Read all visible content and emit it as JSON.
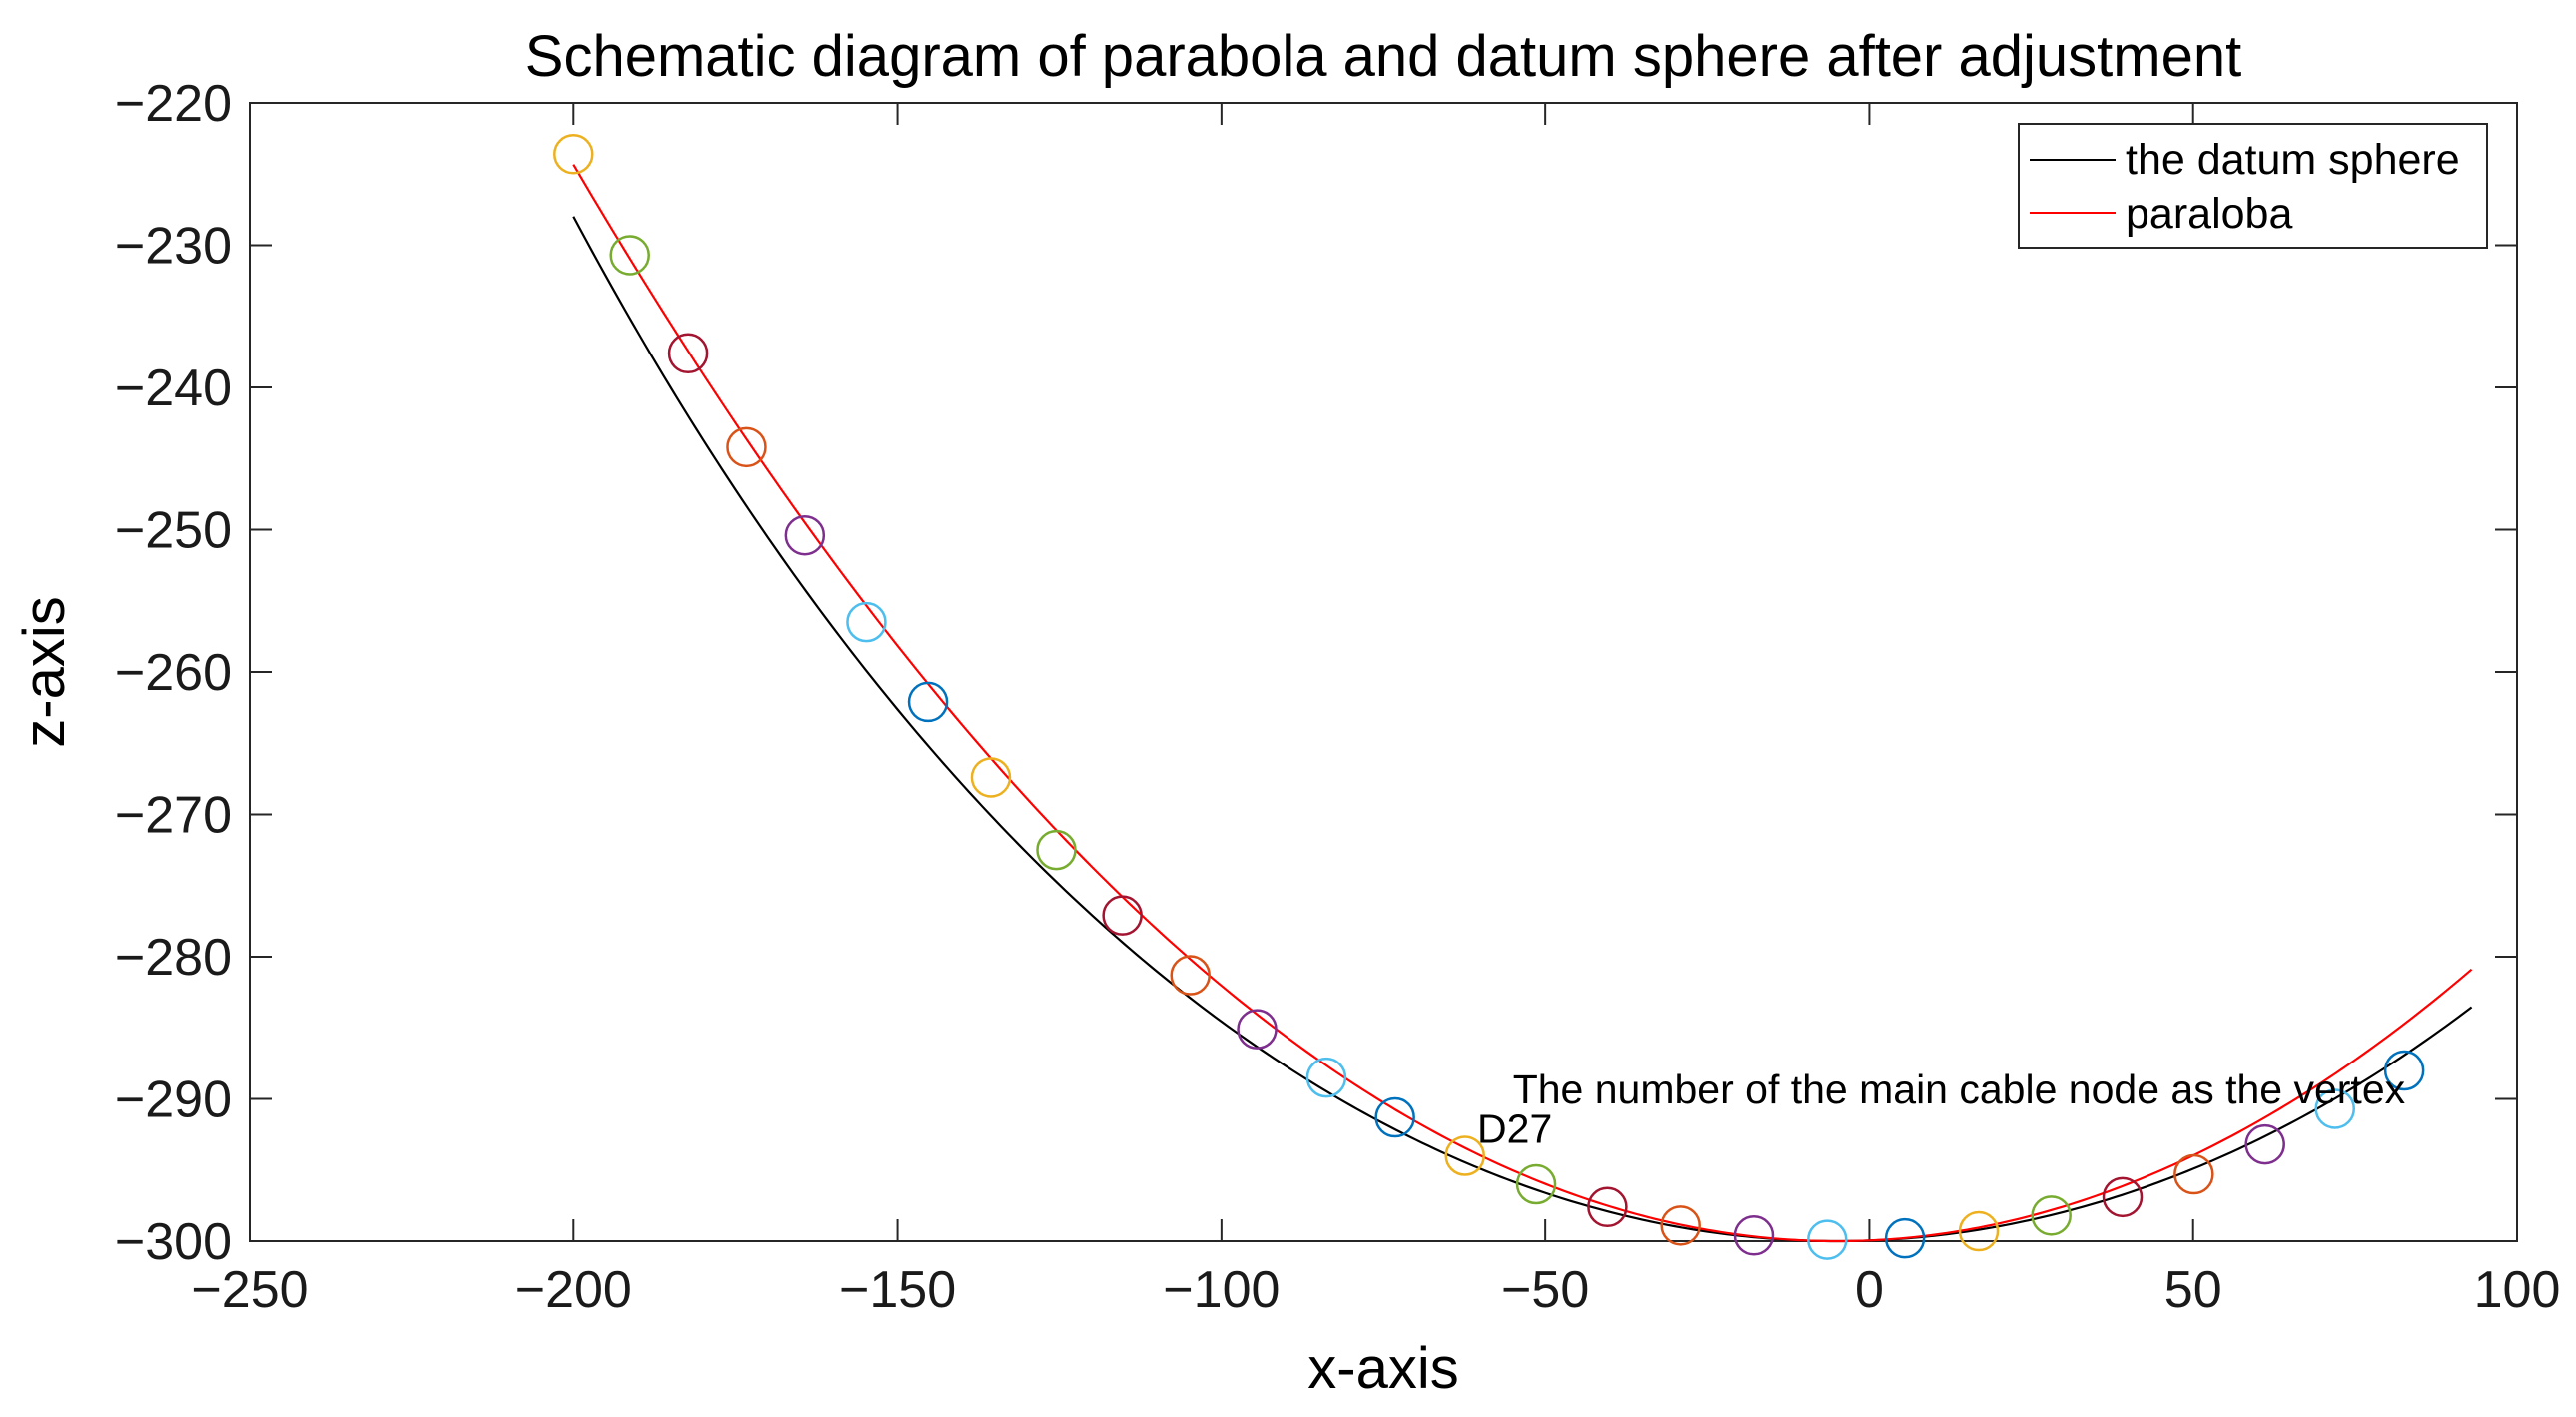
{
  "chart_data": {
    "type": "line",
    "title": "Schematic diagram of parabola and datum sphere after adjustment",
    "xlabel": "x-axis",
    "ylabel": "z-axis",
    "xlim": [
      -250,
      100
    ],
    "ylim": [
      -300,
      -220
    ],
    "x_ticks": [
      -250,
      -200,
      -150,
      -100,
      -50,
      0,
      50,
      100
    ],
    "y_ticks": [
      -220,
      -230,
      -240,
      -250,
      -260,
      -270,
      -280,
      -290,
      -300
    ],
    "x_tick_labels": [
      "−250",
      "−200",
      "−150",
      "−100",
      "−50",
      "0",
      "50",
      "100"
    ],
    "y_tick_labels": [
      "−220",
      "−230",
      "−240",
      "−250",
      "−260",
      "−270",
      "−280",
      "−290",
      "−300"
    ],
    "grid": false,
    "legend": "top-right",
    "series": [
      {
        "name": "the datum sphere",
        "color": "#000000",
        "curve": {
          "vertex_x": -5,
          "vertex_z": -300,
          "radius": 300,
          "x_start": -200,
          "x_end": 93
        }
      },
      {
        "name": "paraloba",
        "color": "#ff0000",
        "curve": {
          "vertex_x": -5,
          "vertex_z": -300,
          "k": 0.00199,
          "x_start": -200,
          "x_end": 93
        }
      }
    ],
    "nodes": [
      {
        "x": -200,
        "z": -223.6,
        "color": "#EDB120"
      },
      {
        "x": -191.3,
        "z": -230.7,
        "color": "#77AC30"
      },
      {
        "x": -182.3,
        "z": -237.6,
        "color": "#A2142F"
      },
      {
        "x": -173.3,
        "z": -244.2,
        "color": "#D95319"
      },
      {
        "x": -164.3,
        "z": -250.4,
        "color": "#7E2F8E"
      },
      {
        "x": -154.8,
        "z": -256.5,
        "color": "#4DBEEE"
      },
      {
        "x": -145.3,
        "z": -262.1,
        "color": "#0072BD"
      },
      {
        "x": -135.6,
        "z": -267.4,
        "color": "#EDB120"
      },
      {
        "x": -125.5,
        "z": -272.5,
        "color": "#77AC30"
      },
      {
        "x": -115.3,
        "z": -277.1,
        "color": "#A2142F"
      },
      {
        "x": -104.8,
        "z": -281.3,
        "color": "#D95319"
      },
      {
        "x": -94.5,
        "z": -285.1,
        "color": "#7E2F8E"
      },
      {
        "x": -83.8,
        "z": -288.5,
        "color": "#4DBEEE"
      },
      {
        "x": -73.2,
        "z": -291.3,
        "color": "#0072BD"
      },
      {
        "x": -62.4,
        "z": -294.0,
        "color": "#EDB120"
      },
      {
        "x": -51.4,
        "z": -296.0,
        "color": "#77AC30"
      },
      {
        "x": -40.4,
        "z": -297.6,
        "color": "#A2142F"
      },
      {
        "x": -29.1,
        "z": -298.9,
        "color": "#D95319"
      },
      {
        "x": -17.8,
        "z": -299.6,
        "color": "#7E2F8E"
      },
      {
        "x": -6.5,
        "z": -299.9,
        "color": "#4DBEEE"
      },
      {
        "x": 5.5,
        "z": -299.8,
        "color": "#0072BD"
      },
      {
        "x": 16.9,
        "z": -299.3,
        "color": "#EDB120"
      },
      {
        "x": 28.1,
        "z": -298.2,
        "color": "#77AC30"
      },
      {
        "x": 39.1,
        "z": -296.9,
        "color": "#A2142F"
      },
      {
        "x": 50.1,
        "z": -295.3,
        "color": "#D95319"
      },
      {
        "x": 61.1,
        "z": -293.2,
        "color": "#7E2F8E"
      },
      {
        "x": 71.9,
        "z": -290.7,
        "color": "#4DBEEE"
      },
      {
        "x": 82.6,
        "z": -288.0,
        "color": "#0072BD"
      }
    ],
    "annotations": [
      {
        "text": "The number of the main cable node as the vertex",
        "x": -55,
        "z": -290.3
      },
      {
        "text": "D27",
        "x": -60.5,
        "z": -293.1
      }
    ]
  }
}
